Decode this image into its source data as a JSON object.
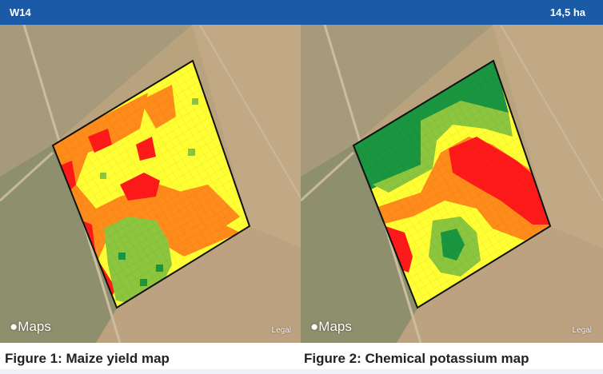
{
  "header": {
    "field_name": "W14",
    "area": "14,5 ha"
  },
  "maps": [
    {
      "attribution": "Maps",
      "legal": "Legal",
      "caption": "Figure 1: Maize yield map"
    },
    {
      "attribution": "Maps",
      "legal": "Legal",
      "caption": "Figure 2: Chemical potassium map"
    }
  ],
  "colors": {
    "header_bg": "#1b5aa6",
    "zone_red": "#ff1a1a",
    "zone_orange": "#ff8c1a",
    "zone_yellow": "#ffff33",
    "zone_lightgreen": "#8cc63f",
    "zone_darkgreen": "#1a9641"
  },
  "icons": {
    "apple_logo": "apple-logo-icon"
  }
}
